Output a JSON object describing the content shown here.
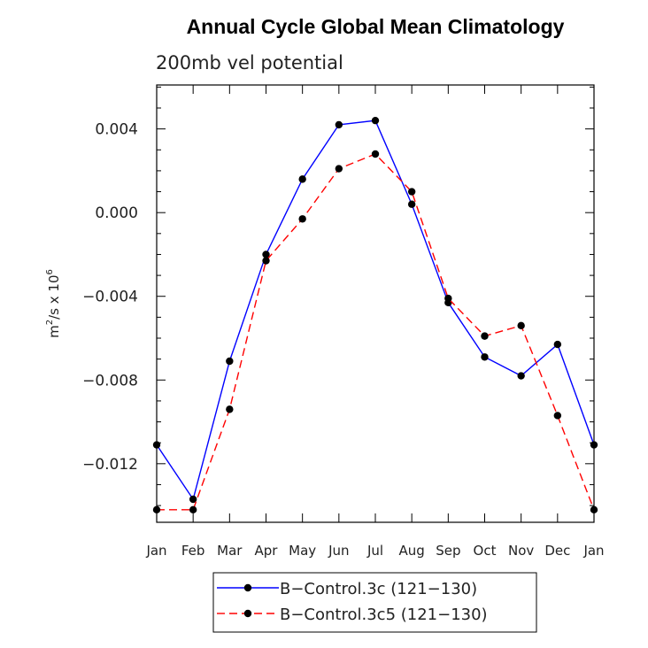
{
  "chart_data": {
    "type": "line",
    "title": "Annual Cycle Global Mean Climatology",
    "subtitle": "200mb vel potential",
    "ylabel_base": "m",
    "ylabel_sup": "2",
    "ylabel_mid": "/s x 10",
    "ylabel_exp": "6",
    "xlabel": "",
    "categories": [
      "Jan",
      "Feb",
      "Mar",
      "Apr",
      "May",
      "Jun",
      "Jul",
      "Aug",
      "Sep",
      "Oct",
      "Nov",
      "Dec",
      "Jan"
    ],
    "ylim": [
      -0.0148,
      0.0061
    ],
    "yticks": [
      0.004,
      0.0,
      -0.004,
      -0.008,
      -0.012
    ],
    "ytick_labels": [
      "0.004",
      "0.000",
      "−0.004",
      "−0.008",
      "−0.012"
    ],
    "series": [
      {
        "name": "B−Control.3c (121−130)",
        "color": "#0000ff",
        "dash": "solid",
        "values": [
          -0.0111,
          -0.0137,
          -0.0071,
          -0.002,
          0.0016,
          0.0042,
          0.0044,
          0.0004,
          -0.0043,
          -0.0069,
          -0.0078,
          -0.0063,
          -0.0111
        ]
      },
      {
        "name": "B−Control.3c5 (121−130)",
        "color": "#ff0000",
        "dash": "dashed",
        "values": [
          -0.0142,
          -0.0142,
          -0.0094,
          -0.0023,
          -0.0003,
          0.0021,
          0.0028,
          0.001,
          -0.0041,
          -0.0059,
          -0.0054,
          -0.0097,
          -0.0142
        ]
      }
    ]
  }
}
